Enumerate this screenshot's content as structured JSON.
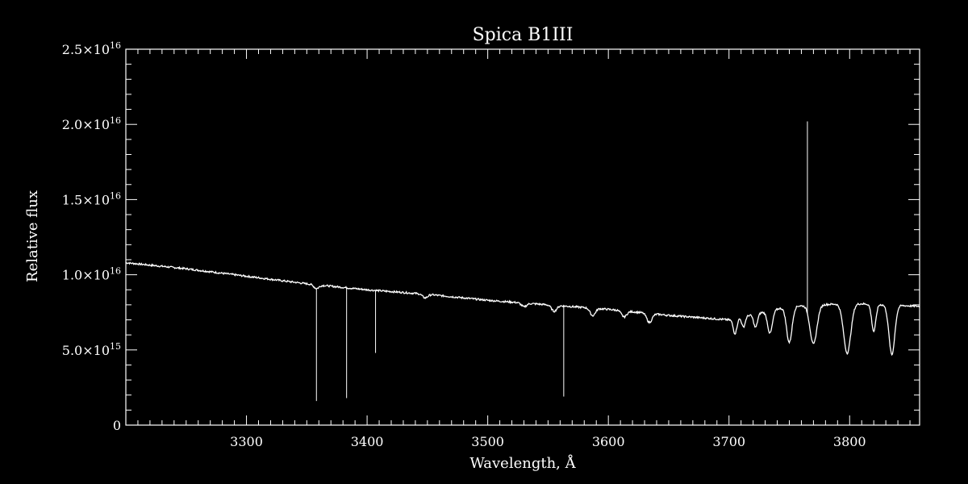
{
  "colors": {
    "background": "#000000",
    "foreground": "#ffffff"
  },
  "chart_data": {
    "type": "line",
    "title": "Spica   B1III",
    "xlabel": "Wavelength, Å",
    "ylabel": "Relative flux",
    "xlim": [
      3200,
      3858
    ],
    "ylim": [
      0,
      2.5e+16
    ],
    "x_ticks": [
      3300,
      3400,
      3500,
      3600,
      3700,
      3800
    ],
    "x_tick_labels": [
      "3300",
      "3400",
      "3500",
      "3600",
      "3700",
      "3800"
    ],
    "y_ticks": [
      0,
      5000000000000000.0,
      1e+16,
      1.5e+16,
      2e+16,
      2.5e+16
    ],
    "y_tick_labels": [
      {
        "mantissa": "0",
        "exp": ""
      },
      {
        "mantissa": "5.0×10",
        "exp": "15"
      },
      {
        "mantissa": "1.0×10",
        "exp": "16"
      },
      {
        "mantissa": "1.5×10",
        "exp": "16"
      },
      {
        "mantissa": "2.0×10",
        "exp": "16"
      },
      {
        "mantissa": "2.5×10",
        "exp": "16"
      }
    ],
    "grid": false,
    "series": [
      {
        "continuum": [
          [
            3200,
            1.08e+16
          ],
          [
            3250,
            1.04e+16
          ],
          [
            3300,
            9900000000000000.0
          ],
          [
            3350,
            9400000000000000.0
          ],
          [
            3400,
            9000000000000000.0
          ],
          [
            3450,
            8700000000000000.0
          ],
          [
            3500,
            8300000000000000.0
          ],
          [
            3550,
            8000000000000000.0
          ],
          [
            3600,
            7700000000000000.0
          ],
          [
            3650,
            7300000000000000.0
          ],
          [
            3700,
            7000000000000000.0
          ],
          [
            3750,
            7900000000000000.0
          ],
          [
            3800,
            8100000000000000.0
          ],
          [
            3858,
            7900000000000000.0
          ]
        ],
        "absorption_lines": [
          [
            3358,
            250000000000000.0,
            3
          ],
          [
            3448,
            250000000000000.0,
            3
          ],
          [
            3530,
            250000000000000.0,
            3
          ],
          [
            3555,
            400000000000000.0,
            3
          ],
          [
            3587,
            500000000000000.0,
            3
          ],
          [
            3613,
            400000000000000.0,
            3
          ],
          [
            3634,
            600000000000000.0,
            3
          ],
          [
            3705,
            1000000000000000.0,
            2.2
          ],
          [
            3712,
            700000000000000.0,
            2
          ],
          [
            3722,
            900000000000000.0,
            2.2
          ],
          [
            3734,
            1500000000000000.0,
            2.8
          ],
          [
            3750,
            2400000000000000.0,
            3.2
          ],
          [
            3770,
            2600000000000000.0,
            4
          ],
          [
            3798,
            3300000000000000.0,
            4.2
          ],
          [
            3820,
            1800000000000000.0,
            2.4
          ],
          [
            3835,
            3300000000000000.0,
            3.4
          ]
        ],
        "spikes": [
          [
            3358,
            1600000000000000.0
          ],
          [
            3383,
            1800000000000000.0
          ],
          [
            3407,
            4800000000000000.0
          ],
          [
            3563,
            1900000000000000.0
          ],
          [
            3765,
            2.02e+16
          ]
        ]
      }
    ]
  }
}
